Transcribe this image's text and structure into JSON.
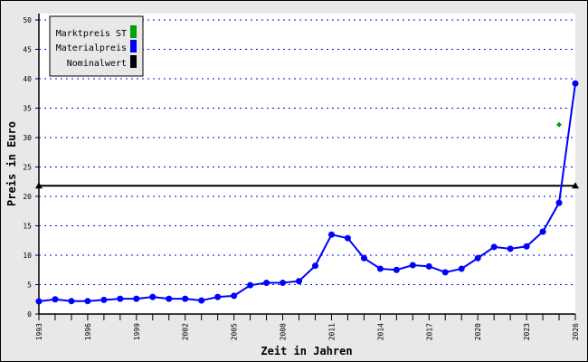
{
  "chart_data": {
    "type": "line",
    "xlabel": "Zeit in Jahren",
    "ylabel": "Preis in Euro",
    "xlim": [
      1993,
      2026
    ],
    "ylim": [
      0,
      50
    ],
    "x_ticks": [
      "1993",
      "1996",
      "1999",
      "2002",
      "2005",
      "2008",
      "2011",
      "2014",
      "2017",
      "2020",
      "2023",
      "2026"
    ],
    "y_ticks": [
      "0",
      "5",
      "10",
      "15",
      "20",
      "25",
      "30",
      "35",
      "40",
      "45",
      "50"
    ],
    "grid": true,
    "legend_position": "top-left",
    "series": [
      {
        "name": "Marktpreis ST",
        "color": "#00a000",
        "x": [
          2025
        ],
        "values": [
          32.2
        ]
      },
      {
        "name": "Materialpreis",
        "color": "#0000ff",
        "x": [
          1993,
          1994,
          1995,
          1996,
          1997,
          1998,
          1999,
          2000,
          2001,
          2002,
          2003,
          2004,
          2005,
          2006,
          2007,
          2008,
          2009,
          2010,
          2011,
          2012,
          2013,
          2014,
          2015,
          2016,
          2017,
          2018,
          2019,
          2020,
          2021,
          2022,
          2023,
          2024,
          2025,
          2026
        ],
        "values": [
          2.15,
          2.5,
          2.2,
          2.2,
          2.4,
          2.6,
          2.6,
          2.9,
          2.6,
          2.6,
          2.3,
          2.9,
          3.1,
          4.9,
          5.3,
          5.3,
          5.6,
          8.2,
          13.5,
          12.9,
          9.5,
          7.7,
          7.5,
          8.3,
          8.1,
          7.1,
          7.7,
          9.5,
          11.4,
          11.1,
          11.5,
          14.0,
          18.9,
          39.2
        ]
      },
      {
        "name": "Nominalwert",
        "color": "#000000",
        "x": [
          1993,
          2026
        ],
        "values": [
          21.8,
          21.8
        ]
      }
    ]
  }
}
